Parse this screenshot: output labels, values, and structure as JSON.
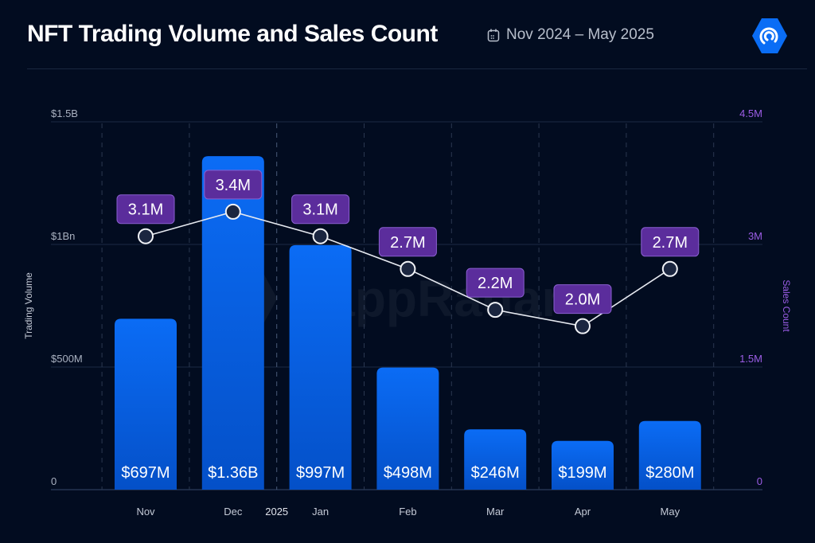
{
  "header": {
    "title": "NFT Trading Volume and Sales Count",
    "date_range": "Nov 2024 – May 2025",
    "calendar_icon": "calendar-icon",
    "logo": "DappRadar"
  },
  "watermark": "DappRadar",
  "colors": {
    "bar": "#0b6cf5",
    "bar_bottom": "#0450c8",
    "line": "#e6e9f0",
    "label_bg": "#5b2d9c",
    "right_axis": "#9b5de5",
    "background": "#020c20"
  },
  "chart_data": {
    "type": "bar+line",
    "categories": [
      "Nov",
      "Dec",
      "Jan",
      "Feb",
      "Mar",
      "Apr",
      "May"
    ],
    "year_marker": "2025",
    "series": [
      {
        "name": "Trading Volume",
        "type": "bar",
        "axis": "left",
        "values": [
          697,
          1360,
          997,
          498,
          246,
          199,
          280
        ],
        "unit": "USD millions",
        "labels": [
          "$697M",
          "$1.36B",
          "$997M",
          "$498M",
          "$246M",
          "$199M",
          "$280M"
        ]
      },
      {
        "name": "Sales Count",
        "type": "line",
        "axis": "right",
        "values": [
          3.1,
          3.4,
          3.1,
          2.7,
          2.2,
          2.0,
          2.7
        ],
        "unit": "millions",
        "labels": [
          "3.1M",
          "3.4M",
          "3.1M",
          "2.7M",
          "2.2M",
          "2.0M",
          "2.7M"
        ]
      }
    ],
    "ylabel": "Trading Volume",
    "y2label": "Sales Count",
    "ylim": [
      0,
      1500
    ],
    "y2lim": [
      0,
      4.5
    ],
    "yticks": [
      {
        "v": 0,
        "label": "0"
      },
      {
        "v": 500,
        "label": "$500M"
      },
      {
        "v": 1000,
        "label": "$1Bn"
      },
      {
        "v": 1500,
        "label": "$1.5B"
      }
    ],
    "y2ticks": [
      {
        "v": 0,
        "label": "0"
      },
      {
        "v": 1.5,
        "label": "1.5M"
      },
      {
        "v": 3,
        "label": "3M"
      },
      {
        "v": 4.5,
        "label": "4.5M"
      }
    ],
    "grid": "horizontal lines at ticks, dashed vertical separators",
    "legend": "none"
  }
}
